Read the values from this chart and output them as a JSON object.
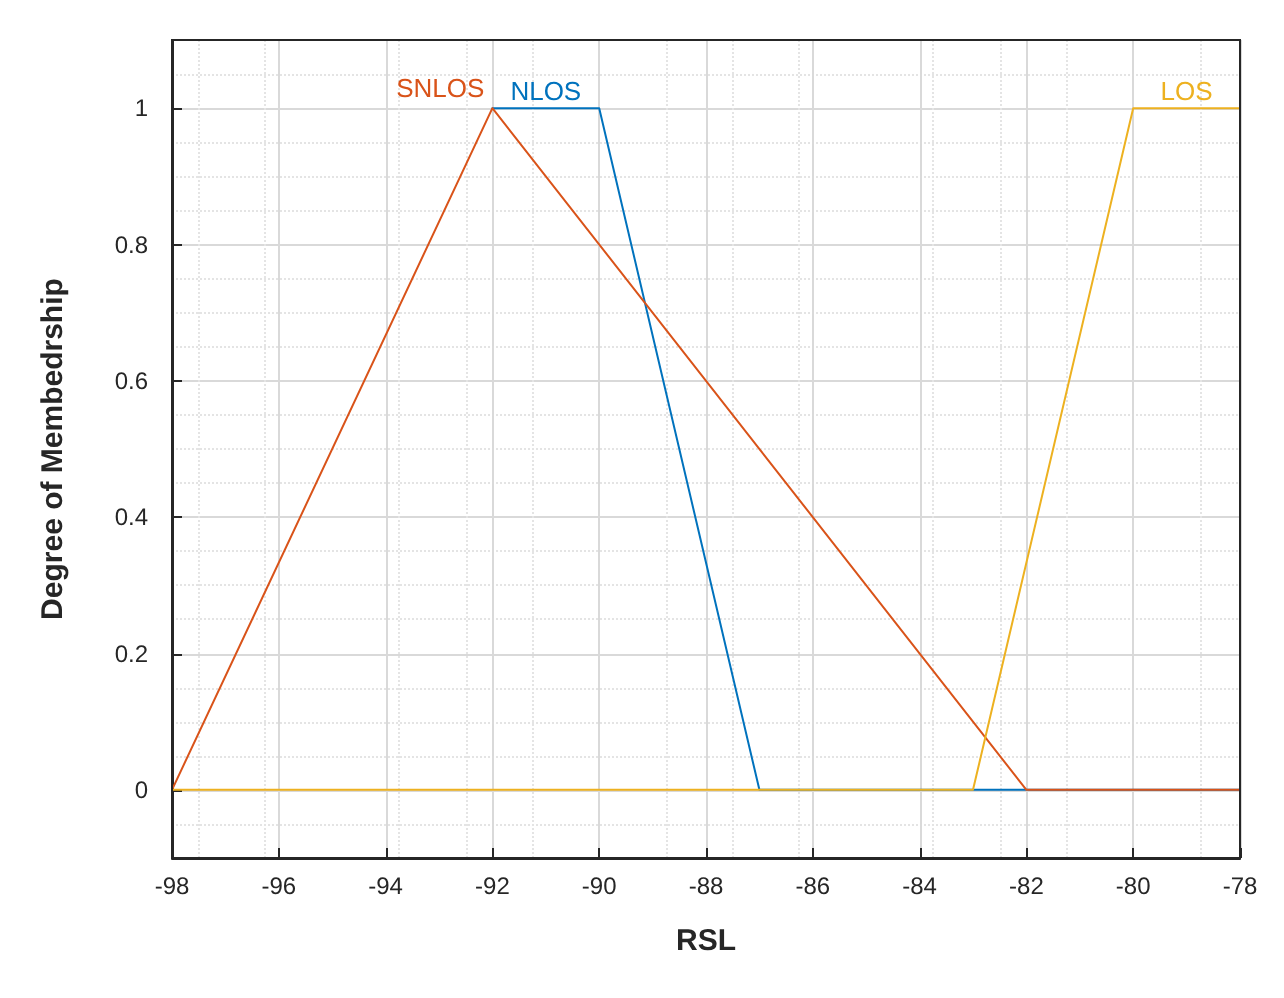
{
  "chart_data": {
    "type": "line",
    "xlabel": "RSL",
    "ylabel": "Degree of Membedrship",
    "series": [
      {
        "name": "NLOS",
        "color": "#0072bd",
        "x": [
          -92,
          -90,
          -87,
          -78
        ],
        "values": [
          1,
          1,
          0,
          0
        ]
      },
      {
        "name": "SNLOS",
        "color": "#d95319",
        "x": [
          -98,
          -92,
          -82,
          -78
        ],
        "values": [
          0,
          1,
          0,
          0
        ]
      },
      {
        "name": "LOS",
        "color": "#edb120",
        "x": [
          -98,
          -83,
          -80,
          -78
        ],
        "values": [
          0,
          0,
          1,
          1
        ]
      }
    ],
    "xlim": [
      -98,
      -78
    ],
    "xticks": [
      -98,
      -96,
      -94,
      -92,
      -90,
      -88,
      -86,
      -84,
      -82,
      -80,
      -78
    ],
    "ylim": [
      -0.1,
      1.1
    ],
    "yticks": [
      0,
      0.2,
      0.4,
      0.6,
      0.8,
      1
    ],
    "grid": true,
    "legend": false,
    "marker": "none",
    "line_style": "solid"
  }
}
